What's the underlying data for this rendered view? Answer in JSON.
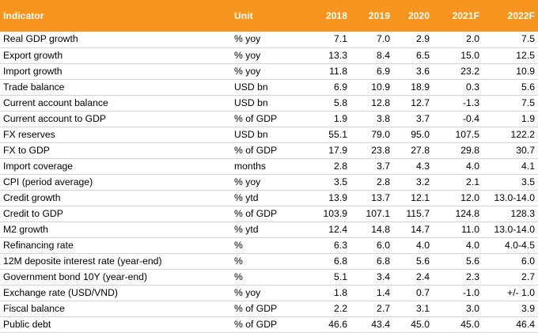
{
  "header": {
    "indicator": "Indicator",
    "unit": "Unit",
    "years": [
      "2018",
      "2019",
      "2020",
      "2021F",
      "2022F"
    ]
  },
  "colors": {
    "header_bg": "#f7941d",
    "header_text": "#ffffff",
    "row_border": "#d4d4d4"
  },
  "rows": [
    {
      "indicator": "Real GDP growth",
      "unit": "% yoy",
      "values": [
        "7.1",
        "7.0",
        "2.9",
        "2.0",
        "7.5"
      ]
    },
    {
      "indicator": "Export growth",
      "unit": "% yoy",
      "values": [
        "13.3",
        "8.4",
        "6.5",
        "15.0",
        "12.5"
      ]
    },
    {
      "indicator": "Import growth",
      "unit": "% yoy",
      "values": [
        "11.8",
        "6.9",
        "3.6",
        "23.2",
        "10.9"
      ]
    },
    {
      "indicator": "Trade balance",
      "unit": "USD bn",
      "values": [
        "6.9",
        "10.9",
        "18.9",
        "0.3",
        "5.6"
      ]
    },
    {
      "indicator": "Current account balance",
      "unit": "USD bn",
      "values": [
        "5.8",
        "12.8",
        "12.7",
        "-1.3",
        "7.5"
      ]
    },
    {
      "indicator": "Current account to GDP",
      "unit": "% of GDP",
      "values": [
        "1.9",
        "3.8",
        "3.7",
        "-0.4",
        "1.9"
      ]
    },
    {
      "indicator": "FX reserves",
      "unit": "USD bn",
      "values": [
        "55.1",
        "79.0",
        "95.0",
        "107.5",
        "122.2"
      ]
    },
    {
      "indicator": "FX to GDP",
      "unit": "% of GDP",
      "values": [
        "17.9",
        "23.8",
        "27.8",
        "29.8",
        "30.7"
      ]
    },
    {
      "indicator": "Import coverage",
      "unit": "months",
      "values": [
        "2.8",
        "3.7",
        "4.3",
        "4.0",
        "4.1"
      ]
    },
    {
      "indicator": "CPI (period average)",
      "unit": "% yoy",
      "values": [
        "3.5",
        "2.8",
        "3.2",
        "2.1",
        "3.5"
      ]
    },
    {
      "indicator": "Credit growth",
      "unit": "% ytd",
      "values": [
        "13.9",
        "13.7",
        "12.1",
        "12.0",
        "13.0-14.0"
      ]
    },
    {
      "indicator": "Credit to GDP",
      "unit": "% of GDP",
      "values": [
        "103.9",
        "107.1",
        "115.7",
        "124.8",
        "128.3"
      ]
    },
    {
      "indicator": "M2 growth",
      "unit": "% ytd",
      "values": [
        "12.4",
        "14.8",
        "14.7",
        "11.0",
        "13.0-14.0"
      ]
    },
    {
      "indicator": "Refinancing rate",
      "unit": "%",
      "values": [
        "6.3",
        "6.0",
        "4.0",
        "4.0",
        "4.0-4.5"
      ]
    },
    {
      "indicator": "12M deposite interest rate (year-end)",
      "unit": "%",
      "values": [
        "6.8",
        "6.8",
        "5.6",
        "5.6",
        "6.0"
      ]
    },
    {
      "indicator": "Government bond 10Y (year-end)",
      "unit": "%",
      "values": [
        "5.1",
        "3.4",
        "2.4",
        "2.3",
        "2.7"
      ]
    },
    {
      "indicator": "Exchange rate (USD/VND)",
      "unit": "% yoy",
      "values": [
        "1.8",
        "1.4",
        "0.7",
        "-1.0",
        "+/- 1.0"
      ]
    },
    {
      "indicator": "Fiscal balance",
      "unit": "% of GDP",
      "values": [
        "2.2",
        "2.7",
        "3.1",
        "3.0",
        "3.9"
      ]
    },
    {
      "indicator": "Public debt",
      "unit": "% of GDP",
      "values": [
        "46.6",
        "43.4",
        "45.0",
        "45.0",
        "46.4"
      ]
    }
  ]
}
